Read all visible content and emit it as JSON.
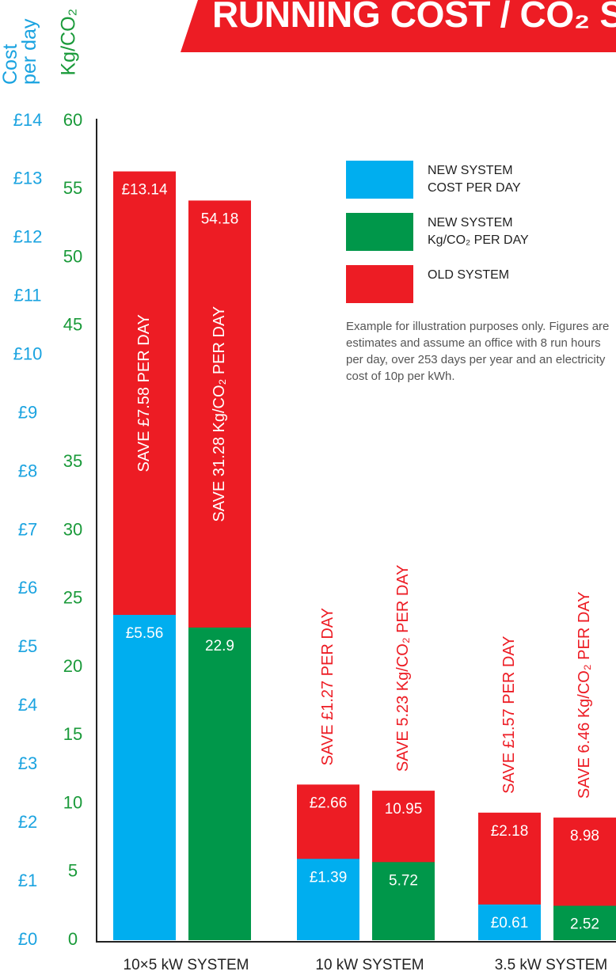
{
  "chart_data": {
    "type": "bar",
    "title": "RUNNING COST / CO₂ S",
    "y_label": "Cost per day",
    "y2_label": "Kg/CO₂",
    "categories": [
      "10×5 kW SYSTEM",
      "10 kW SYSTEM",
      "3.5 kW SYSTEM"
    ],
    "ylim": [
      0,
      14
    ],
    "yticks": [
      {
        "value": 0,
        "label": "£0"
      },
      {
        "value": 1,
        "label": "£1"
      },
      {
        "value": 2,
        "label": "£2"
      },
      {
        "value": 3,
        "label": "£3"
      },
      {
        "value": 4,
        "label": "£4"
      },
      {
        "value": 5,
        "label": "£5"
      },
      {
        "value": 6,
        "label": "£6"
      },
      {
        "value": 7,
        "label": "£7"
      },
      {
        "value": 8,
        "label": "£8"
      },
      {
        "value": 9,
        "label": "£9"
      },
      {
        "value": 10,
        "label": "£10"
      },
      {
        "value": 11,
        "label": "£11"
      },
      {
        "value": 12,
        "label": "£12"
      },
      {
        "value": 13,
        "label": "£13"
      },
      {
        "value": 14,
        "label": "£14"
      }
    ],
    "y2lim": [
      0,
      60
    ],
    "y2ticks": [
      0,
      5,
      10,
      15,
      20,
      25,
      30,
      35,
      45,
      50,
      55,
      60
    ],
    "series": [
      {
        "name": "NEW SYSTEM COST PER DAY",
        "color": "#00aeef",
        "values": [
          5.56,
          1.39,
          0.61
        ],
        "value_labels": [
          "£5.56",
          "£1.39",
          "£0.61"
        ]
      },
      {
        "name": "NEW SYSTEM Kg/CO₂ PER DAY",
        "color": "#00974a",
        "axis": "y2",
        "values": [
          22.9,
          5.72,
          2.52
        ]
      },
      {
        "name": "OLD SYSTEM",
        "color": "#ed1c24",
        "values": [
          13.14,
          2.66,
          2.18
        ],
        "value_labels": [
          "£13.14",
          "£2.66",
          "£2.18"
        ]
      },
      {
        "color": "#ed1c24",
        "axis": "y2",
        "values": [
          54.18,
          10.95,
          8.98
        ]
      }
    ],
    "annotations": [
      "SAVE £7.58 PER DAY",
      "SAVE 31.28 Kg/CO₂ PER DAY",
      "SAVE £1.27 PER DAY",
      "SAVE 5.23 Kg/CO₂ PER DAY",
      "SAVE £1.57 PER DAY",
      "SAVE 6.46 Kg/CO₂ PER DAY"
    ],
    "note": "Example for illustration purposes only. Figures are estimates and assume an office with 8 run hours per day, over 253 days per year and an electricity cost of 10p per kWh."
  }
}
